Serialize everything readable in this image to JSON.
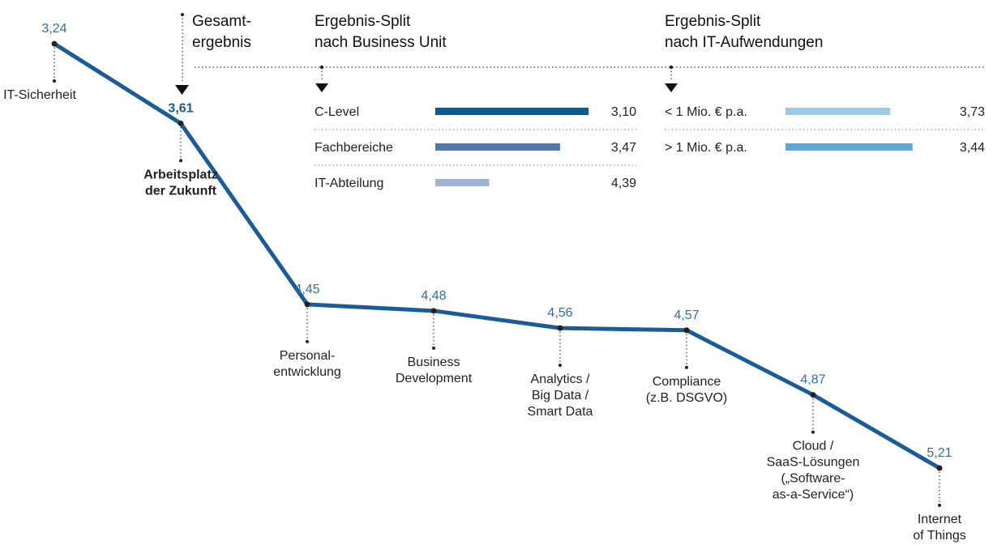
{
  "chart_data": [
    {
      "type": "line",
      "annotation": "Gesamt-\nergebnis",
      "categories": [
        "IT-Sicherheit",
        "Arbeitsplatz\nder Zukunft",
        "Personal-\nentwicklung",
        "Business\nDevelopment",
        "Analytics /\nBig Data /\nSmart Data",
        "Compliance\n(z.B. DSGVO)",
        "Cloud /\nSaaS-Lösungen\n(„Software-\nas-a-Service“)",
        "Internet\nof Things"
      ],
      "values": [
        3.24,
        3.61,
        4.45,
        4.48,
        4.56,
        4.57,
        4.87,
        5.21
      ],
      "value_labels": [
        "3,24",
        "3,61",
        "4,45",
        "4,48",
        "4,56",
        "4,57",
        "4,87",
        "5,21"
      ],
      "color": "#1a5d96",
      "highlight": 1
    },
    {
      "type": "bar",
      "title": "Ergebnis-Split\nnach Business Unit",
      "categories": [
        "C-Level",
        "Fachbereiche",
        "IT-Abteilung"
      ],
      "values": [
        3.1,
        3.47,
        4.39
      ],
      "value_labels": [
        "3,10",
        "3,47",
        "4,39"
      ],
      "colors": [
        "#0d5a94",
        "#5079b0",
        "#9db3d6"
      ]
    },
    {
      "type": "bar",
      "title": "Ergebnis-Split\nnach IT-Aufwendungen",
      "categories": [
        "< 1 Mio. € p.a.",
        "> 1 Mio. € p.a."
      ],
      "values": [
        3.73,
        3.44
      ],
      "value_labels": [
        "3,73",
        "3,44"
      ],
      "colors": [
        "#9ccbea",
        "#5aaad9"
      ]
    }
  ]
}
